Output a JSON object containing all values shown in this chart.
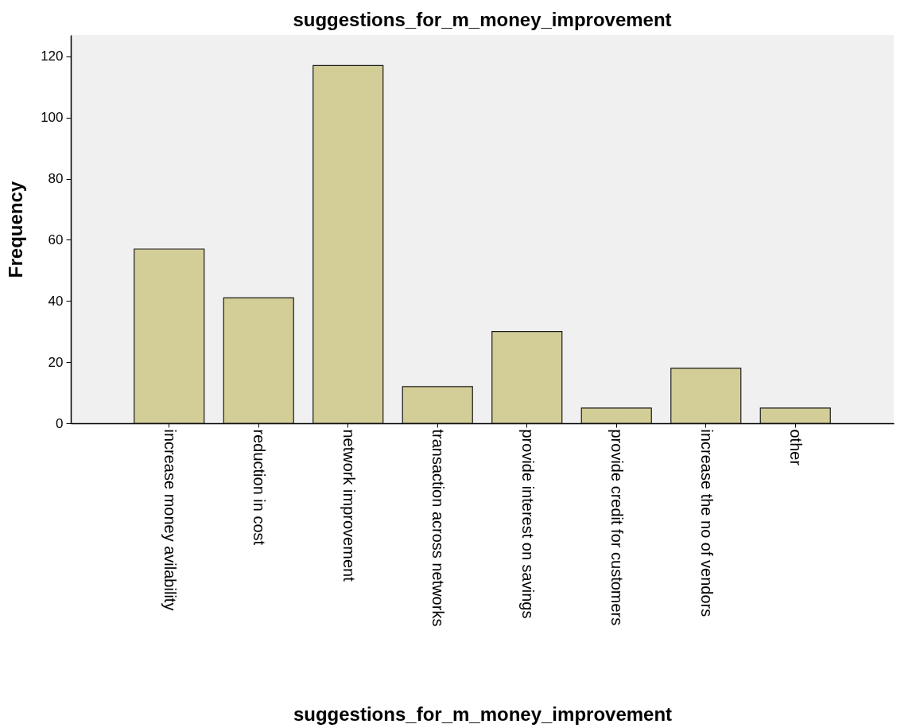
{
  "chart_data": {
    "type": "bar",
    "title": "suggestions_for_m_money_improvement",
    "xlabel": "suggestions_for_m_money_improvement",
    "ylabel": "Frequency",
    "categories": [
      "increase money avilability",
      "reduction in cost",
      "network improvement",
      "transaction across networks",
      "provide interest on savings",
      "provide credit for customers",
      "increase the no of vendors",
      "other"
    ],
    "values": [
      57,
      41,
      117,
      12,
      30,
      5,
      18,
      5
    ],
    "color": "#d3ce97",
    "ylim": [
      0,
      127
    ],
    "yticks": [
      0,
      20,
      40,
      60,
      80,
      100,
      120
    ],
    "grid": false
  }
}
